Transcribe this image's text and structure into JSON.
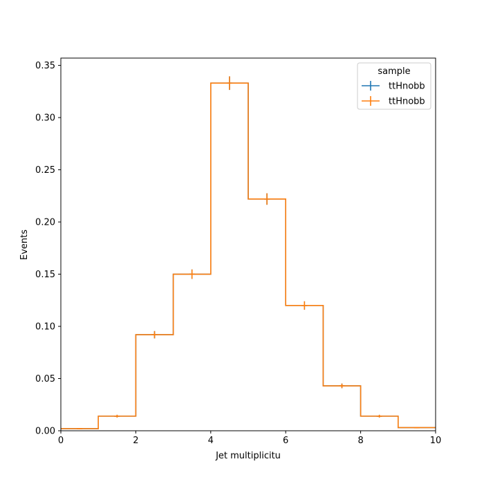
{
  "chart_data": {
    "type": "histogram-step",
    "xlabel": "Jet multiplicitu",
    "ylabel": "Events",
    "xlim": [
      0,
      10
    ],
    "ylim": [
      0,
      0.357
    ],
    "xticks": [
      0,
      2,
      4,
      6,
      8,
      10
    ],
    "xtick_labels": [
      "0",
      "2",
      "4",
      "6",
      "8",
      "10"
    ],
    "yticks": [
      0.0,
      0.05,
      0.1,
      0.15,
      0.2,
      0.25,
      0.3,
      0.35
    ],
    "ytick_labels": [
      "0.00",
      "0.05",
      "0.10",
      "0.15",
      "0.20",
      "0.25",
      "0.30",
      "0.35"
    ],
    "bin_edges": [
      0,
      1,
      2,
      3,
      4,
      5,
      6,
      7,
      8,
      9,
      10
    ],
    "grid": false,
    "legend": {
      "title": "sample",
      "placement": "upper right"
    },
    "series": [
      {
        "name": "ttHnobb",
        "color": "#1f77b4",
        "values": [
          0.002,
          0.014,
          0.092,
          0.15,
          0.333,
          0.222,
          0.12,
          0.043,
          0.014,
          0.003
        ],
        "errors": [
          0.0005,
          0.0013,
          0.0035,
          0.0045,
          0.0065,
          0.0055,
          0.004,
          0.0022,
          0.0013,
          0.0006
        ]
      },
      {
        "name": "ttHnobb",
        "color": "#ff7f0e",
        "values": [
          0.002,
          0.014,
          0.092,
          0.15,
          0.333,
          0.222,
          0.12,
          0.043,
          0.014,
          0.003
        ],
        "errors": [
          0.0005,
          0.0013,
          0.0035,
          0.0045,
          0.0065,
          0.0055,
          0.004,
          0.0022,
          0.0013,
          0.0006
        ]
      }
    ]
  }
}
